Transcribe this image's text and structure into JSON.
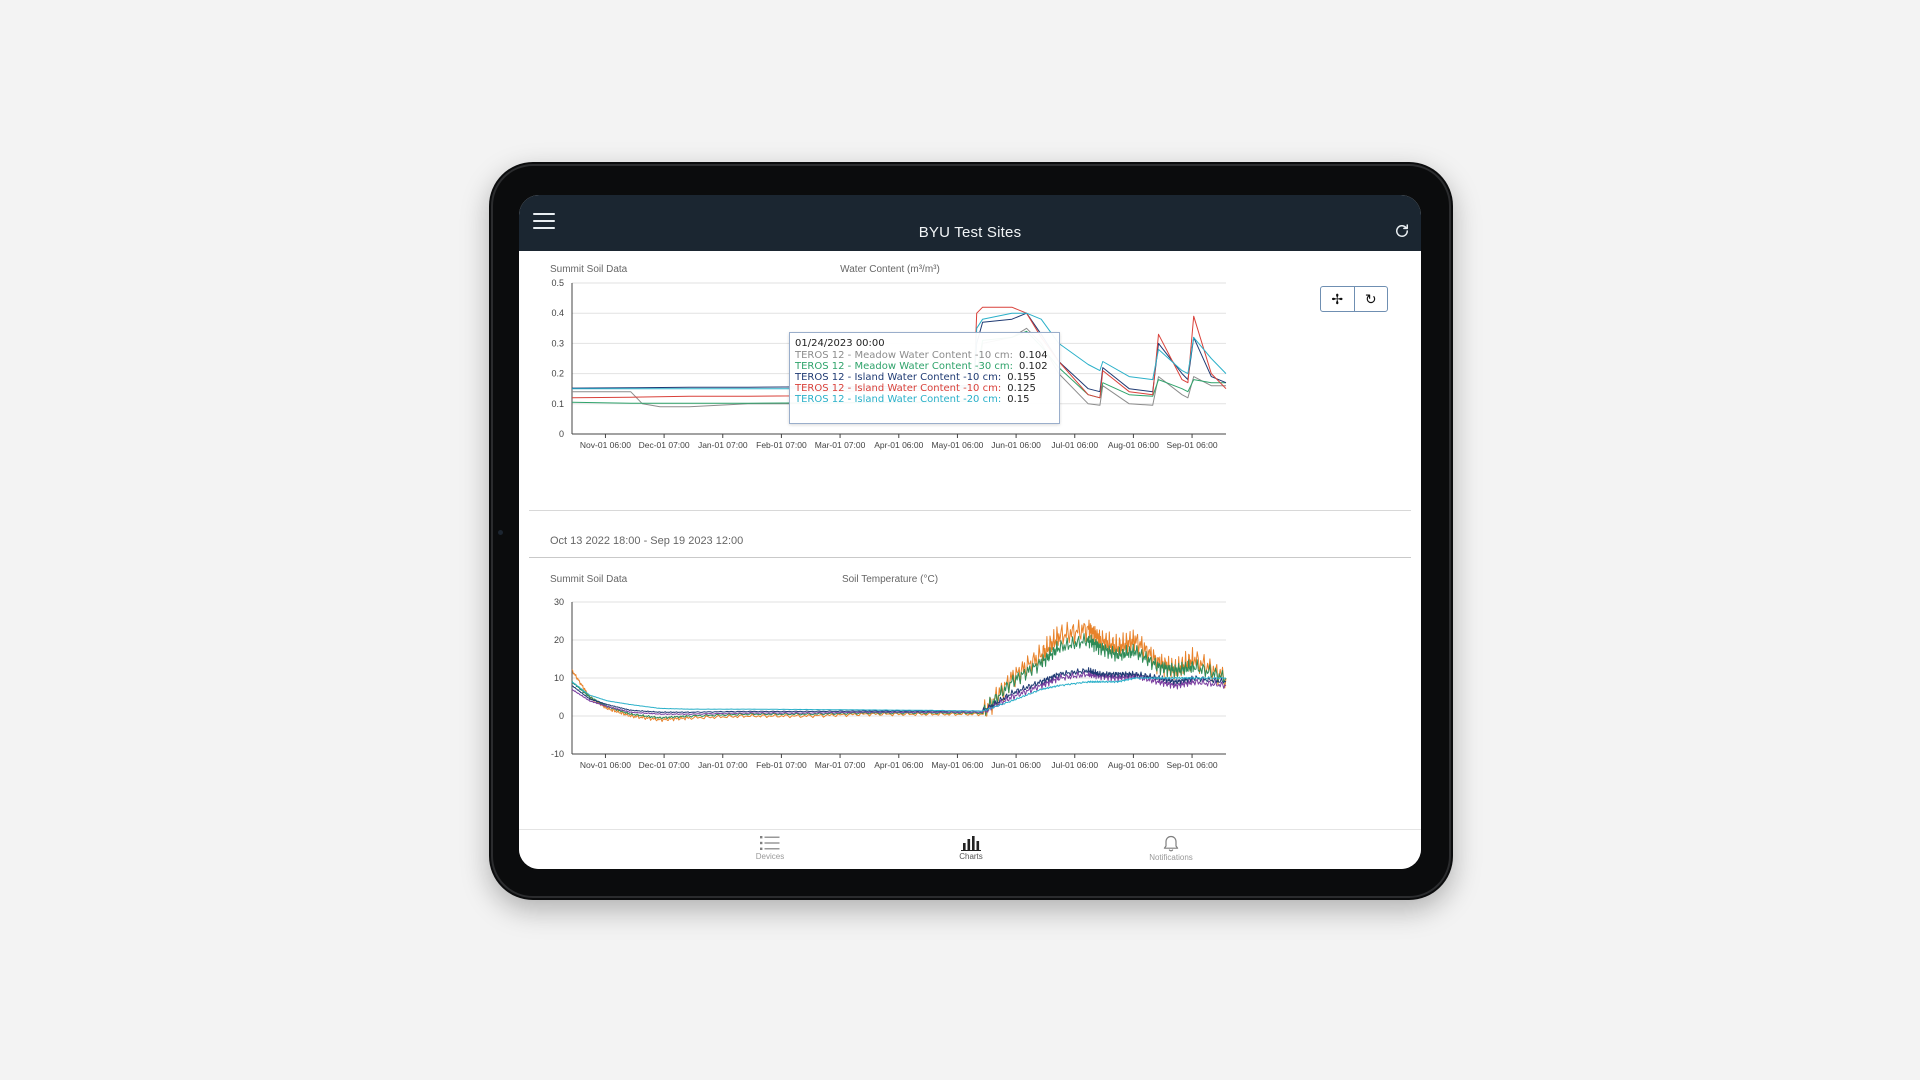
{
  "app": {
    "title": "BYU Test Sites",
    "menu_icon": "hamburger-menu-icon",
    "refresh_icon": "refresh-icon"
  },
  "chart1": {
    "site_label": "Summit Soil Data",
    "title": "Water Content (m³/m³)",
    "tools": [
      {
        "name": "pan-icon",
        "glyph": "✢"
      },
      {
        "name": "reset-zoom-icon",
        "glyph": "↻"
      }
    ],
    "date_range": "Oct 13 2022 18:00 - Sep 19 2023 12:00",
    "tooltip": {
      "date": "01/24/2023 00:00",
      "rows": [
        {
          "label": "TEROS 12 - Meadow Water Content -10 cm:",
          "value": "0.104",
          "color": "#8c8c8c"
        },
        {
          "label": "TEROS 12 - Meadow Water Content -30 cm:",
          "value": "0.102",
          "color": "#2fa36b"
        },
        {
          "label": "TEROS 12 - Island Water Content -10 cm:",
          "value": "0.155",
          "color": "#1f3a73"
        },
        {
          "label": "TEROS 12 - Island Water Content -10 cm:",
          "value": "0.125",
          "color": "#d9413a"
        },
        {
          "label": "TEROS 12 - Island Water Content -20 cm:",
          "value": "0.15",
          "color": "#2ab0c9"
        }
      ]
    }
  },
  "chart2": {
    "site_label": "Summit Soil Data",
    "title": "Soil Temperature (°C)"
  },
  "tabs": [
    {
      "label": "Devices",
      "icon": "list-icon",
      "active": false
    },
    {
      "label": "Charts",
      "icon": "bar-chart-icon",
      "active": true
    },
    {
      "label": "Notifications",
      "icon": "bell-icon",
      "active": false
    }
  ],
  "chart_data": [
    {
      "type": "line",
      "title": "Water Content (m³/m³)",
      "x_ticks": [
        "Nov-01 06:00",
        "Dec-01 07:00",
        "Jan-01 07:00",
        "Feb-01 07:00",
        "Mar-01 07:00",
        "Apr-01 06:00",
        "May-01 06:00",
        "Jun-01 06:00",
        "Jul-01 06:00",
        "Aug-01 06:00",
        "Sep-01 06:00"
      ],
      "x_tick_pos": [
        0.5703,
        1.5703,
        2.5703,
        3.5703,
        4.5703,
        5.5714,
        6.5714,
        7.5714,
        8.5714,
        9.5714,
        10.5714
      ],
      "x_range": [
        0,
        11.15
      ],
      "ylim": [
        0,
        0.5
      ],
      "y_ticks": [
        0,
        0.1,
        0.2,
        0.3,
        0.4,
        0.5
      ],
      "grid": true,
      "series": [
        {
          "name": "TEROS 12 - Meadow Water Content -10 cm",
          "color": "#8c8c8c",
          "x": [
            0,
            0.5,
            1.0,
            1.2,
            1.5,
            2.0,
            3,
            4,
            5,
            6,
            6.85,
            6.88,
            7.0,
            7.5,
            7.75,
            8.0,
            8.3,
            8.8,
            9.0,
            9.05,
            9.5,
            9.9,
            10.0,
            10.4,
            10.5,
            10.6,
            10.9,
            11.15
          ],
          "y": [
            0.14,
            0.14,
            0.14,
            0.1,
            0.09,
            0.09,
            0.1,
            0.1,
            0.105,
            0.105,
            0.11,
            0.15,
            0.3,
            0.32,
            0.35,
            0.3,
            0.2,
            0.1,
            0.095,
            0.16,
            0.1,
            0.095,
            0.19,
            0.13,
            0.12,
            0.19,
            0.16,
            0.16
          ]
        },
        {
          "name": "TEROS 12 - Meadow Water Content -30 cm",
          "color": "#2fa36b",
          "x": [
            0,
            1,
            2,
            3,
            4,
            5,
            6,
            6.85,
            6.9,
            7.0,
            7.5,
            7.75,
            8.0,
            8.3,
            8.8,
            9.0,
            9.05,
            9.5,
            9.9,
            10.0,
            10.4,
            10.5,
            10.6,
            10.9,
            11.15
          ],
          "y": [
            0.105,
            0.102,
            0.102,
            0.102,
            0.103,
            0.104,
            0.106,
            0.11,
            0.2,
            0.31,
            0.32,
            0.34,
            0.29,
            0.22,
            0.13,
            0.12,
            0.17,
            0.13,
            0.125,
            0.18,
            0.15,
            0.14,
            0.18,
            0.17,
            0.17
          ]
        },
        {
          "name": "TEROS 12 - Island Water Content -10 cm",
          "color": "#1f3a73",
          "x": [
            0,
            1,
            2,
            3,
            4,
            5,
            6,
            6.85,
            6.9,
            7.0,
            7.5,
            7.75,
            8.0,
            8.3,
            8.8,
            9.0,
            9.05,
            9.5,
            9.9,
            10.0,
            10.4,
            10.5,
            10.6,
            10.9,
            11.15
          ],
          "y": [
            0.152,
            0.153,
            0.155,
            0.155,
            0.156,
            0.156,
            0.158,
            0.16,
            0.3,
            0.37,
            0.38,
            0.4,
            0.33,
            0.24,
            0.15,
            0.14,
            0.22,
            0.15,
            0.14,
            0.3,
            0.2,
            0.18,
            0.32,
            0.19,
            0.17
          ]
        },
        {
          "name": "TEROS 12 - Island Water Content -10 cm",
          "color": "#d9413a",
          "x": [
            0,
            1,
            2,
            3,
            3.8,
            4.0,
            4.5,
            5,
            6,
            6.85,
            6.9,
            7.0,
            7.5,
            7.75,
            8.0,
            8.3,
            8.8,
            9.0,
            9.05,
            9.5,
            9.9,
            10.0,
            10.4,
            10.5,
            10.6,
            10.9,
            11.15
          ],
          "y": [
            0.12,
            0.122,
            0.125,
            0.125,
            0.126,
            0.14,
            0.142,
            0.142,
            0.145,
            0.15,
            0.4,
            0.42,
            0.42,
            0.4,
            0.32,
            0.24,
            0.13,
            0.12,
            0.21,
            0.14,
            0.13,
            0.33,
            0.18,
            0.17,
            0.39,
            0.2,
            0.15
          ]
        },
        {
          "name": "TEROS 12 - Island Water Content -20 cm",
          "color": "#2ab0c9",
          "x": [
            0,
            1,
            2,
            3,
            4,
            5,
            6,
            6.85,
            6.9,
            7.0,
            7.5,
            7.75,
            8.0,
            8.3,
            8.8,
            9.0,
            9.05,
            9.5,
            9.9,
            10.0,
            10.4,
            10.5,
            10.6,
            10.9,
            11.15
          ],
          "y": [
            0.15,
            0.15,
            0.15,
            0.15,
            0.15,
            0.15,
            0.152,
            0.155,
            0.35,
            0.38,
            0.4,
            0.4,
            0.38,
            0.3,
            0.23,
            0.21,
            0.24,
            0.19,
            0.18,
            0.28,
            0.21,
            0.2,
            0.32,
            0.25,
            0.2
          ]
        }
      ]
    },
    {
      "type": "line",
      "title": "Soil Temperature (°C)",
      "x_ticks": [
        "Nov-01 06:00",
        "Dec-01 07:00",
        "Jan-01 07:00",
        "Feb-01 07:00",
        "Mar-01 07:00",
        "Apr-01 06:00",
        "May-01 06:00",
        "Jun-01 06:00",
        "Jul-01 06:00",
        "Aug-01 06:00",
        "Sep-01 06:00"
      ],
      "x_tick_pos": [
        0.5703,
        1.5703,
        2.5703,
        3.5703,
        4.5703,
        5.5714,
        6.5714,
        7.5714,
        8.5714,
        9.5714,
        10.5714
      ],
      "x_range": [
        0,
        11.15
      ],
      "ylim": [
        -10,
        30
      ],
      "y_ticks": [
        -10,
        0,
        10,
        20,
        30
      ],
      "grid": true,
      "series": [
        {
          "color": "#e8822a",
          "x": [
            0,
            0.3,
            0.6,
            1.0,
            1.5,
            2.0,
            3,
            4,
            5,
            6,
            7,
            7.5,
            8.0,
            8.3,
            8.8,
            9.0,
            9.3,
            9.6,
            10.0,
            10.3,
            10.6,
            11.15
          ],
          "y": [
            12,
            5,
            2,
            0,
            -1,
            -0.5,
            0,
            0,
            0.5,
            0.5,
            0.5,
            10,
            16,
            21,
            23,
            20,
            18,
            20,
            14,
            12,
            15,
            10
          ],
          "jitter": 4
        },
        {
          "color": "#2e8b57",
          "x": [
            0,
            0.3,
            0.6,
            1.0,
            1.5,
            2.0,
            3,
            4,
            5,
            6,
            7,
            7.5,
            8.0,
            8.3,
            8.8,
            9.0,
            9.3,
            9.6,
            10.0,
            10.3,
            10.6,
            11.15
          ],
          "y": [
            9,
            5,
            2.5,
            0.5,
            -0.5,
            0,
            0.5,
            0.5,
            0.8,
            0.8,
            0.8,
            9,
            14,
            18,
            20,
            18,
            16,
            17,
            13,
            12,
            13,
            10
          ],
          "jitter": 2.5
        },
        {
          "color": "#7b3fa0",
          "x": [
            0,
            0.3,
            0.6,
            1.0,
            1.5,
            2.0,
            3,
            4,
            5,
            6,
            7,
            7.5,
            8.0,
            8.3,
            8.8,
            9.0,
            9.3,
            9.6,
            10.0,
            10.3,
            10.6,
            11.15
          ],
          "y": [
            7,
            4,
            2.5,
            1,
            0.5,
            0.5,
            0.8,
            0.8,
            1,
            1,
            1,
            5,
            8,
            10,
            11,
            10.5,
            10,
            10.5,
            9,
            8,
            9,
            8
          ],
          "jitter": 1.2
        },
        {
          "color": "#1f3a73",
          "x": [
            0,
            0.3,
            0.6,
            1.0,
            1.5,
            2.0,
            3,
            4,
            5,
            6,
            7,
            7.5,
            8.0,
            8.3,
            8.8,
            9.0,
            9.3,
            9.6,
            10.0,
            10.3,
            10.6,
            11.15
          ],
          "y": [
            8,
            4.5,
            3,
            1.5,
            1,
            1,
            1.2,
            1.2,
            1.3,
            1.3,
            1.3,
            6,
            9,
            11,
            12,
            11,
            11,
            11,
            10,
            9,
            10,
            9
          ],
          "jitter": 1
        },
        {
          "color": "#2ab0c9",
          "x": [
            0,
            0.3,
            0.6,
            1.0,
            1.5,
            2.0,
            3,
            4,
            5,
            6,
            7,
            7.5,
            8.0,
            8.3,
            8.8,
            9.0,
            9.3,
            9.6,
            10.0,
            10.3,
            10.6,
            11.15
          ],
          "y": [
            9,
            5.5,
            4,
            3,
            2,
            1.8,
            1.8,
            1.7,
            1.6,
            1.5,
            1.3,
            4,
            7,
            8,
            9,
            9,
            9,
            10,
            10,
            10,
            10,
            10
          ],
          "jitter": 0.3
        }
      ]
    }
  ]
}
